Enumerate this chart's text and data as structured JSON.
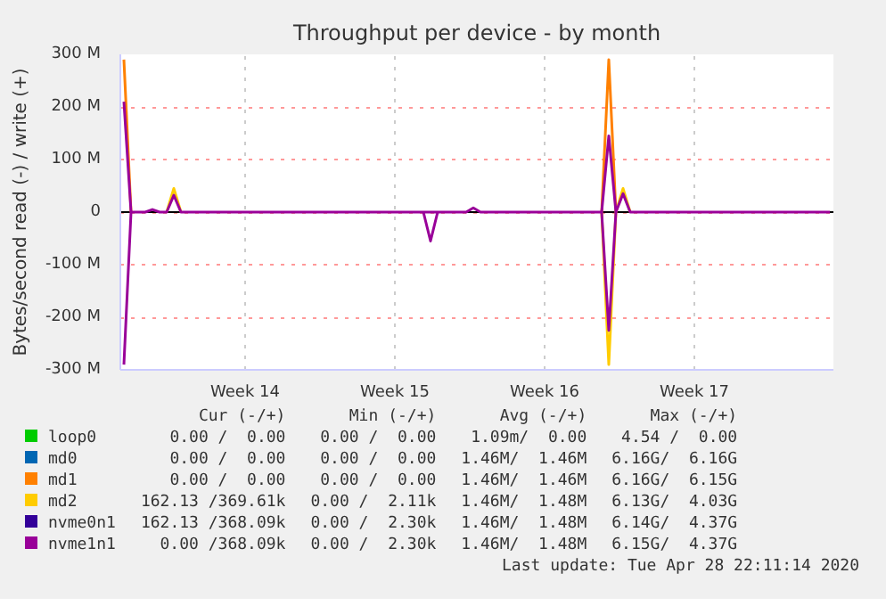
{
  "chart_data": {
    "type": "line",
    "title": "Throughput per device - by month",
    "ylabel": "Bytes/second read (-) / write (+)",
    "categories": [
      null,
      null,
      null,
      null,
      null,
      null,
      null,
      null,
      null,
      null,
      null,
      null,
      null,
      null,
      null,
      null,
      null,
      "Week 14",
      null,
      null,
      null,
      null,
      null,
      null,
      null,
      null,
      null,
      null,
      null,
      null,
      null,
      null,
      null,
      null,
      null,
      null,
      null,
      null,
      "Week 15",
      null,
      null,
      null,
      null,
      null,
      null,
      null,
      null,
      null,
      null,
      null,
      null,
      null,
      null,
      null,
      null,
      null,
      null,
      null,
      null,
      "Week 16",
      null,
      null,
      null,
      null,
      null,
      null,
      null,
      null,
      null,
      null,
      null,
      null,
      null,
      null,
      null,
      null,
      null,
      null,
      null,
      null,
      "Week 17",
      null,
      null,
      null,
      null,
      null,
      null,
      null,
      null,
      null,
      null,
      null,
      null,
      null,
      null,
      null,
      null,
      null,
      null,
      null
    ],
    "ylim": [
      -300,
      300
    ],
    "yticks": [
      {
        "value": -300,
        "label": "-300 M"
      },
      {
        "value": -200,
        "label": "-200 M"
      },
      {
        "value": -100,
        "label": "-100 M"
      },
      0,
      {
        "value": 100,
        "label": "100 M"
      },
      {
        "value": 200,
        "label": "200 M"
      },
      {
        "value": 300,
        "label": "300 M"
      }
    ],
    "grid": true,
    "legend": "bottom",
    "ref_lines": [
      {
        "axis": "y",
        "value": 0,
        "color": "#000000",
        "line_style": "solid"
      }
    ],
    "series": [
      {
        "name": "loop0",
        "color": "#00cc00",
        "values": [
          null,
          null,
          null,
          null,
          null,
          null,
          null,
          null,
          null,
          null,
          null,
          null,
          null,
          null,
          null,
          null,
          null,
          null,
          null,
          null,
          null,
          null,
          null,
          null,
          null,
          null,
          null,
          null,
          null,
          null,
          null,
          null,
          null,
          null,
          null,
          null,
          null,
          null,
          null,
          null,
          null,
          null,
          null,
          null,
          null,
          null,
          null,
          null,
          null,
          null,
          null,
          null,
          null,
          null,
          null,
          null,
          null,
          null,
          null,
          null,
          null,
          null,
          null,
          null,
          null,
          null,
          null,
          null,
          null,
          null,
          null,
          null,
          null,
          null,
          null,
          null,
          null,
          null,
          null,
          null,
          null,
          null,
          null,
          null,
          null,
          null,
          null,
          null,
          null,
          null,
          null,
          null,
          null,
          null,
          null,
          null,
          null,
          null,
          null,
          null
        ]
      },
      {
        "name": "md0",
        "color": "#0066b3",
        "values": [
          null,
          null,
          null,
          null,
          null,
          null,
          null,
          null,
          null,
          null,
          null,
          null,
          null,
          null,
          null,
          null,
          null,
          null,
          null,
          null,
          null,
          null,
          null,
          null,
          null,
          null,
          null,
          null,
          null,
          null,
          null,
          null,
          null,
          null,
          null,
          null,
          null,
          null,
          null,
          null,
          null,
          null,
          null,
          null,
          null,
          null,
          null,
          null,
          null,
          null,
          null,
          null,
          null,
          null,
          null,
          null,
          null,
          null,
          null,
          null,
          null,
          null,
          null,
          null,
          null,
          null,
          null,
          null,
          null,
          null,
          null,
          null,
          null,
          null,
          null,
          null,
          null,
          null,
          null,
          null,
          null,
          null,
          null,
          null,
          null,
          null,
          null,
          null,
          null,
          null,
          null,
          null,
          null,
          null,
          null,
          null,
          null,
          null,
          null,
          null
        ]
      },
      {
        "name": "md1",
        "color": "#ff8000",
        "values": [
          290,
          0,
          null,
          null,
          null,
          null,
          null,
          null,
          null,
          null,
          null,
          null,
          null,
          null,
          null,
          null,
          null,
          null,
          null,
          null,
          null,
          null,
          null,
          null,
          null,
          null,
          null,
          null,
          null,
          null,
          null,
          null,
          null,
          null,
          null,
          null,
          null,
          null,
          null,
          null,
          null,
          null,
          null,
          null,
          null,
          null,
          null,
          null,
          null,
          null,
          null,
          null,
          null,
          null,
          null,
          null,
          null,
          null,
          null,
          null,
          null,
          null,
          null,
          null,
          null,
          null,
          null,
          0,
          290,
          0,
          null,
          null,
          null,
          null,
          null,
          null,
          null,
          null,
          null,
          null,
          null,
          null,
          null,
          null,
          null,
          null,
          null,
          null,
          null,
          null,
          null,
          null,
          null,
          null,
          null,
          null,
          null,
          null,
          null,
          null
        ]
      },
      {
        "name": "md2",
        "color": "#ffcc00",
        "values": [
          null,
          null,
          null,
          null,
          null,
          null,
          0,
          45,
          0,
          null,
          null,
          null,
          null,
          null,
          null,
          null,
          null,
          null,
          null,
          null,
          null,
          null,
          null,
          null,
          null,
          null,
          null,
          null,
          null,
          null,
          null,
          null,
          null,
          null,
          null,
          null,
          null,
          null,
          null,
          null,
          null,
          null,
          null,
          null,
          null,
          null,
          null,
          null,
          null,
          null,
          null,
          null,
          null,
          null,
          null,
          null,
          null,
          null,
          null,
          null,
          null,
          null,
          null,
          null,
          null,
          null,
          null,
          0,
          -290,
          0,
          45,
          0,
          null,
          null,
          null,
          null,
          null,
          null,
          null,
          null,
          null,
          null,
          null,
          null,
          null,
          null,
          null,
          null,
          null,
          null,
          null,
          null,
          null,
          null,
          null,
          null,
          null,
          null,
          null,
          null
        ]
      },
      {
        "name": "nvme0n1",
        "color": "#330099",
        "values": [
          null,
          null,
          null,
          null,
          null,
          null,
          null,
          null,
          null,
          null,
          null,
          null,
          null,
          null,
          null,
          null,
          null,
          null,
          null,
          null,
          null,
          null,
          null,
          null,
          null,
          null,
          null,
          null,
          null,
          null,
          null,
          null,
          null,
          null,
          null,
          null,
          null,
          null,
          null,
          null,
          null,
          null,
          null,
          null,
          null,
          null,
          null,
          null,
          null,
          null,
          null,
          null,
          null,
          null,
          null,
          null,
          null,
          null,
          null,
          null,
          null,
          null,
          null,
          null,
          null,
          null,
          null,
          null,
          null,
          null,
          null,
          null,
          null,
          null,
          null,
          null,
          null,
          null,
          null,
          null,
          null,
          null,
          null,
          null,
          null,
          null,
          null,
          null,
          null,
          null,
          null,
          null,
          null,
          null,
          null,
          null,
          null,
          null,
          null,
          null
        ]
      },
      {
        "name": "nvme1n1",
        "color": "#990099",
        "values": [
          210,
          0,
          0,
          0,
          5,
          0,
          0,
          32,
          0,
          0,
          0,
          0,
          0,
          0,
          0,
          0,
          0,
          0,
          0,
          0,
          0,
          0,
          0,
          0,
          0,
          0,
          0,
          0,
          0,
          0,
          0,
          0,
          0,
          0,
          0,
          0,
          0,
          0,
          0,
          0,
          0,
          0,
          0,
          0,
          0,
          0,
          0,
          0,
          0,
          8,
          0,
          0,
          0,
          0,
          0,
          0,
          0,
          0,
          0,
          0,
          0,
          0,
          0,
          0,
          0,
          0,
          0,
          0,
          145,
          0,
          35,
          0,
          0,
          0,
          0,
          0,
          0,
          0,
          0,
          0,
          0,
          0,
          0,
          0,
          0,
          0,
          0,
          0,
          0,
          0,
          0,
          0,
          0,
          0,
          0,
          0,
          0,
          0,
          0,
          0
        ]
      },
      {
        "color": "#990099",
        "values": [
          -290,
          0,
          null,
          null,
          null,
          null,
          null,
          null,
          null,
          null,
          null,
          null,
          null,
          null,
          null,
          null,
          null,
          null,
          null,
          null,
          null,
          null,
          null,
          null,
          null,
          null,
          null,
          null,
          null,
          null,
          null,
          null,
          null,
          null,
          null,
          null,
          null,
          null,
          null,
          null,
          null,
          null,
          0,
          -55,
          0,
          null,
          null,
          null,
          null,
          null,
          null,
          null,
          null,
          null,
          null,
          null,
          null,
          null,
          null,
          null,
          null,
          null,
          null,
          null,
          null,
          null,
          null,
          0,
          -225,
          0,
          null,
          null,
          null,
          null,
          null,
          null,
          null,
          null,
          null,
          null,
          null,
          null,
          null,
          null,
          null,
          null,
          null,
          null,
          null,
          null,
          null,
          null,
          null,
          null,
          null,
          null,
          null,
          null,
          null,
          null
        ]
      }
    ],
    "annotations": [
      "Cur (-/+)",
      "Min (-/+)",
      "Avg (-/+)",
      "Max (-/+)",
      "0.00 /  0.00",
      "0.00 /  0.00",
      "1.09m/  0.00",
      "4.54 /  0.00",
      "0.00 /  0.00",
      "0.00 /  0.00",
      "1.46M/  1.46M",
      "6.16G/  6.16G",
      "0.00 /  0.00",
      "0.00 /  0.00",
      "1.46M/  1.46M",
      "6.16G/  6.15G",
      "162.13 /369.61k",
      "0.00 /  2.11k",
      "1.46M/  1.48M",
      "6.13G/  4.03G",
      "162.13 /368.09k",
      "0.00 /  2.30k",
      "1.46M/  1.48M",
      "6.14G/  4.37G",
      "0.00 /368.09k",
      "0.00 /  2.30k",
      "1.46M/  1.48M",
      "6.15G/  4.37G",
      "Last update: Tue Apr 28 22:11:14 2020"
    ]
  }
}
